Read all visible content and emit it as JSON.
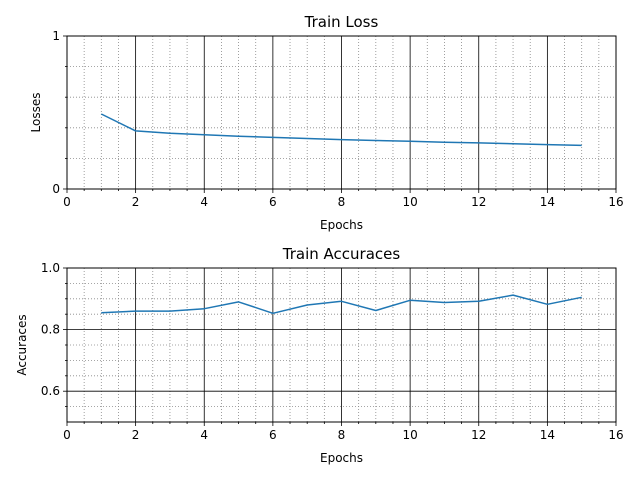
{
  "chart_data": [
    {
      "type": "line",
      "title": "Train Loss",
      "xlabel": "Epochs",
      "ylabel": "Losses",
      "xlim": [
        0,
        16
      ],
      "ylim": [
        0,
        1
      ],
      "xticks": [
        0,
        2,
        4,
        6,
        8,
        10,
        12,
        14,
        16
      ],
      "xtick_labels": [
        "0",
        "2",
        "4",
        "6",
        "8",
        "10",
        "12",
        "14",
        "16"
      ],
      "yticks": [
        0,
        1
      ],
      "ytick_labels": [
        "0",
        "1"
      ],
      "grid": true,
      "series": [
        {
          "color": "#1f77b4",
          "x": [
            1,
            2,
            3,
            4,
            5,
            6,
            7,
            8,
            9,
            10,
            11,
            12,
            13,
            14,
            15
          ],
          "y": [
            0.49,
            0.38,
            0.365,
            0.355,
            0.345,
            0.337,
            0.33,
            0.323,
            0.317,
            0.312,
            0.306,
            0.301,
            0.296,
            0.29,
            0.285
          ]
        }
      ]
    },
    {
      "type": "line",
      "title": "Train Accuraces",
      "xlabel": "Epochs",
      "ylabel": "Accuraces",
      "xlim": [
        0,
        16
      ],
      "ylim": [
        0.5,
        1.0
      ],
      "xticks": [
        0,
        2,
        4,
        6,
        8,
        10,
        12,
        14,
        16
      ],
      "xtick_labels": [
        "0",
        "2",
        "4",
        "6",
        "8",
        "10",
        "12",
        "14",
        "16"
      ],
      "yticks": [
        0.6,
        0.8,
        1.0
      ],
      "ytick_labels": [
        "0.6",
        "0.8",
        "1.0"
      ],
      "grid": true,
      "series": [
        {
          "color": "#1f77b4",
          "x": [
            1,
            2,
            3,
            4,
            5,
            6,
            7,
            8,
            9,
            10,
            11,
            12,
            13,
            14,
            15
          ],
          "y": [
            0.855,
            0.86,
            0.86,
            0.868,
            0.89,
            0.853,
            0.88,
            0.892,
            0.862,
            0.895,
            0.888,
            0.892,
            0.912,
            0.882,
            0.905
          ]
        }
      ]
    }
  ]
}
